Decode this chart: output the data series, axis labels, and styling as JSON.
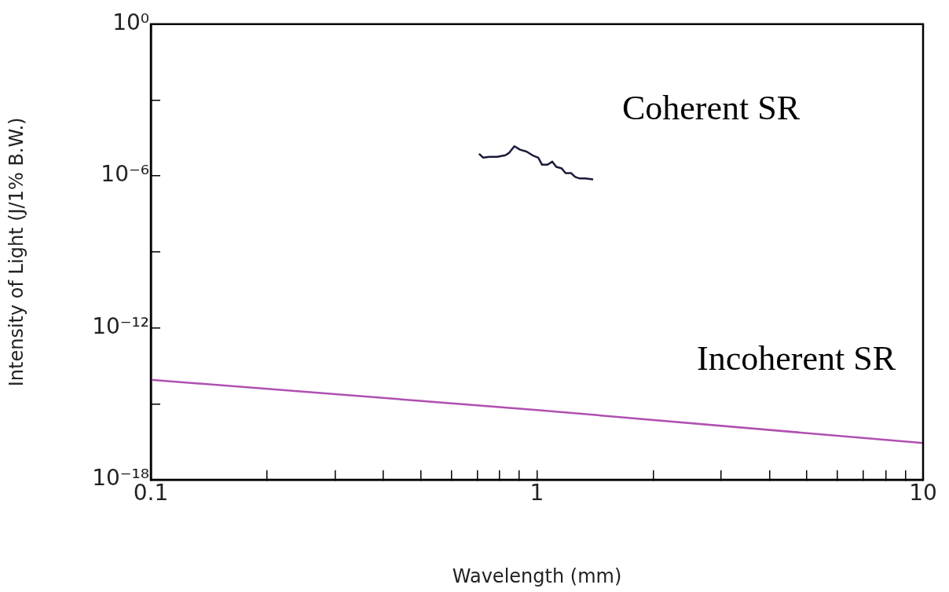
{
  "chart_data": {
    "type": "line",
    "xlabel": "Wavelength (mm)",
    "ylabel": "Intensity of Light (J/1% B.W.)",
    "log": "xy",
    "grid": false,
    "legend": false,
    "marker": "none",
    "line_style": "solid",
    "xlim": [
      0.1,
      10
    ],
    "xticks": [
      0.1,
      {
        "value": 0.2,
        "label": null
      },
      {
        "value": 0.3,
        "label": null
      },
      {
        "value": 0.4,
        "label": null
      },
      {
        "value": 0.5,
        "label": null
      },
      {
        "value": 0.6,
        "label": null
      },
      {
        "value": 0.7,
        "label": null
      },
      {
        "value": 0.8,
        "label": null
      },
      {
        "value": 0.9,
        "label": null
      },
      1,
      {
        "value": 2,
        "label": null
      },
      {
        "value": 3,
        "label": null
      },
      {
        "value": 4,
        "label": null
      },
      {
        "value": 5,
        "label": null
      },
      {
        "value": 6,
        "label": null
      },
      {
        "value": 7,
        "label": null
      },
      {
        "value": 8,
        "label": null
      },
      {
        "value": 9,
        "label": null
      },
      10
    ],
    "ylim": [
      1e-18,
      1
    ],
    "yticks": [
      {
        "value": 1e-18,
        "label": "10⁻¹⁸"
      },
      {
        "value": 1e-15,
        "label": null
      },
      {
        "value": 1e-12,
        "label": "10⁻¹²"
      },
      {
        "value": 1e-09,
        "label": null
      },
      {
        "value": 1e-06,
        "label": "10⁻⁶"
      },
      {
        "value": 0.001,
        "label": null
      },
      {
        "value": 1,
        "label": "10⁰"
      }
    ],
    "series": [
      {
        "name": "Coherent SR",
        "color": "#1a1a3a",
        "x": [
          0.708,
          0.726,
          0.753,
          0.789,
          0.828,
          0.846,
          0.874,
          0.904,
          0.939,
          0.974,
          1.008,
          1.031,
          1.065,
          1.096,
          1.122,
          1.159,
          1.186,
          1.227,
          1.256,
          1.291,
          1.334,
          1.398
        ],
        "values": [
          7.6e-06,
          5.3e-06,
          5.7e-06,
          5.7e-06,
          6.6e-06,
          8.1e-06,
          1.5e-05,
          1.1e-05,
          9.3e-06,
          6.6e-06,
          5.3e-06,
          2.8e-06,
          2.8e-06,
          3.7e-06,
          2.3e-06,
          2e-06,
          1.3e-06,
          1.3e-06,
          9.2e-07,
          8e-07,
          8e-07,
          7.4e-07
        ]
      },
      {
        "name": "Incoherent SR",
        "color": "#b050b0",
        "x": [
          0.1,
          1,
          10
        ],
        "values": [
          8.9e-15,
          5.7e-16,
          2.8e-17
        ]
      }
    ]
  }
}
